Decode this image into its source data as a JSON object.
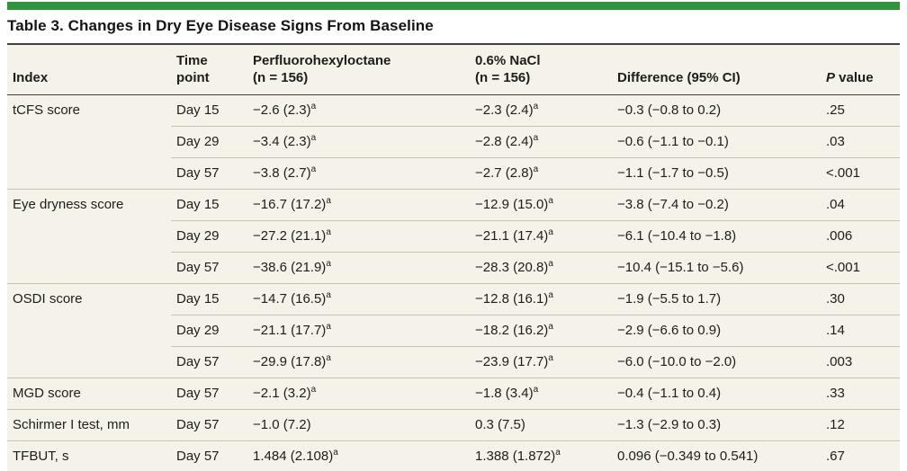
{
  "colors": {
    "accent_green": "#2d963c",
    "panel_bg": "#f4f2e9",
    "rule_dark": "#3f3f3f",
    "rule_light": "#c8c5b8",
    "text": "#1d1d1b"
  },
  "title": "Table 3. Changes in Dry Eye Disease Signs From Baseline",
  "table": {
    "headers": {
      "index": "Index",
      "time": "Time\npoint",
      "drug": "Perfluorohexyloctane\n(n = 156)",
      "nacl": "0.6% NaCl\n(n = 156)",
      "diff": "Difference (95% CI)",
      "p_italic": "P",
      "p_rest": " value"
    },
    "footnote_marker": "a",
    "rows": [
      {
        "index": "tCFS score",
        "time": "Day 15",
        "drug": "−2.6 (2.3)",
        "drug_sup": "a",
        "nacl": "−2.3 (2.4)",
        "nacl_sup": "a",
        "diff": "−0.3 (−0.8 to 0.2)",
        "p": ".25"
      },
      {
        "index": "",
        "time": "Day 29",
        "drug": "−3.4 (2.3)",
        "drug_sup": "a",
        "nacl": "−2.8 (2.4)",
        "nacl_sup": "a",
        "diff": "−0.6 (−1.1 to −0.1)",
        "p": ".03"
      },
      {
        "index": "",
        "time": "Day 57",
        "drug": "−3.8 (2.7)",
        "drug_sup": "a",
        "nacl": "−2.7 (2.8)",
        "nacl_sup": "a",
        "diff": "−1.1 (−1.7 to −0.5)",
        "p": "<.001"
      },
      {
        "index": "Eye dryness score",
        "time": "Day 15",
        "drug": "−16.7 (17.2)",
        "drug_sup": "a",
        "nacl": "−12.9 (15.0)",
        "nacl_sup": "a",
        "diff": "−3.8 (−7.4 to −0.2)",
        "p": ".04"
      },
      {
        "index": "",
        "time": "Day 29",
        "drug": "−27.2 (21.1)",
        "drug_sup": "a",
        "nacl": "−21.1 (17.4)",
        "nacl_sup": "a",
        "diff": "−6.1 (−10.4 to −1.8)",
        "p": ".006"
      },
      {
        "index": "",
        "time": "Day 57",
        "drug": "−38.6 (21.9)",
        "drug_sup": "a",
        "nacl": "−28.3 (20.8)",
        "nacl_sup": "a",
        "diff": "−10.4 (−15.1 to −5.6)",
        "p": "<.001"
      },
      {
        "index": "OSDI score",
        "time": "Day 15",
        "drug": "−14.7 (16.5)",
        "drug_sup": "a",
        "nacl": "−12.8 (16.1)",
        "nacl_sup": "a",
        "diff": "−1.9 (−5.5 to 1.7)",
        "p": ".30"
      },
      {
        "index": "",
        "time": "Day 29",
        "drug": "−21.1 (17.7)",
        "drug_sup": "a",
        "nacl": "−18.2 (16.2)",
        "nacl_sup": "a",
        "diff": "−2.9 (−6.6 to 0.9)",
        "p": ".14"
      },
      {
        "index": "",
        "time": "Day 57",
        "drug": "−29.9 (17.8)",
        "drug_sup": "a",
        "nacl": "−23.9 (17.7)",
        "nacl_sup": "a",
        "diff": "−6.0 (−10.0 to −2.0)",
        "p": ".003"
      },
      {
        "index": "MGD score",
        "time": "Day 57",
        "drug": "−2.1 (3.2)",
        "drug_sup": "a",
        "nacl": "−1.8 (3.4)",
        "nacl_sup": "a",
        "diff": "−0.4 (−1.1 to 0.4)",
        "p": ".33"
      },
      {
        "index": "Schirmer I test, mm",
        "time": "Day 57",
        "drug": "−1.0 (7.2)",
        "nacl": "0.3 (7.5)",
        "diff": "−1.3 (−2.9 to 0.3)",
        "p": ".12"
      },
      {
        "index": "TFBUT, s",
        "time": "Day 57",
        "drug": "1.484 (2.108)",
        "drug_sup": "a",
        "nacl": "1.388 (1.872)",
        "nacl_sup": "a",
        "diff": "0.096 (−0.349 to 0.541)",
        "p": ".67"
      }
    ]
  }
}
